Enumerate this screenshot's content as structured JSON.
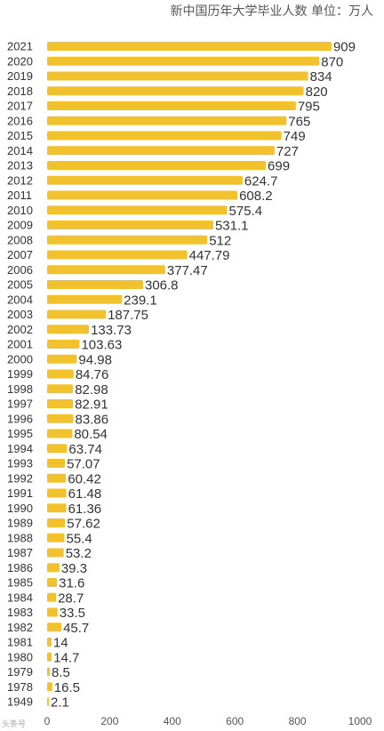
{
  "chart_data": {
    "type": "bar",
    "orientation": "horizontal",
    "title": "新中国历年大学毕业人数  单位：万人",
    "categories": [
      "2021",
      "2020",
      "2019",
      "2018",
      "2017",
      "2016",
      "2015",
      "2014",
      "2013",
      "2012",
      "2011",
      "2010",
      "2009",
      "2008",
      "2007",
      "2006",
      "2005",
      "2004",
      "2003",
      "2002",
      "2001",
      "2000",
      "1999",
      "1998",
      "1997",
      "1996",
      "1995",
      "1994",
      "1993",
      "1992",
      "1991",
      "1990",
      "1989",
      "1988",
      "1987",
      "1986",
      "1985",
      "1984",
      "1983",
      "1982",
      "1981",
      "1980",
      "1979",
      "1978",
      "1949"
    ],
    "values": [
      909,
      870,
      834,
      820,
      795,
      765,
      749,
      727,
      699,
      624.7,
      608.2,
      575.4,
      531.1,
      512,
      447.79,
      377.47,
      306.8,
      239.1,
      187.75,
      133.73,
      103.63,
      94.98,
      84.76,
      82.98,
      82.91,
      83.86,
      80.54,
      63.74,
      57.07,
      60.42,
      61.48,
      61.36,
      57.62,
      55.4,
      53.2,
      39.3,
      31.6,
      28.7,
      33.5,
      45.7,
      14,
      14.7,
      8.5,
      16.5,
      2.1
    ],
    "value_labels": [
      "909",
      "870",
      "834",
      "820",
      "795",
      "765",
      "749",
      "727",
      "699",
      "624.7",
      "608.2",
      "575.4",
      "531.1",
      "512",
      "447.79",
      "377.47",
      "306.8",
      "239.1",
      "187.75",
      "133.73",
      "103.63",
      "94.98",
      "84.76",
      "82.98",
      "82.91",
      "83.86",
      "80.54",
      "63.74",
      "57.07",
      "60.42",
      "61.48",
      "61.36",
      "57.62",
      "55.4",
      "53.2",
      "39.3",
      "31.6",
      "28.7",
      "33.5",
      "45.7",
      "14",
      "14.7",
      "8.5",
      "16.5",
      "2.1"
    ],
    "xticks": [
      "0",
      "200",
      "400",
      "600",
      "800",
      "1000"
    ],
    "xlim": [
      0,
      1000
    ],
    "xlabel": "",
    "ylabel": "",
    "grid": false,
    "bar_color": "#f2c12e"
  },
  "watermark": "头条号"
}
